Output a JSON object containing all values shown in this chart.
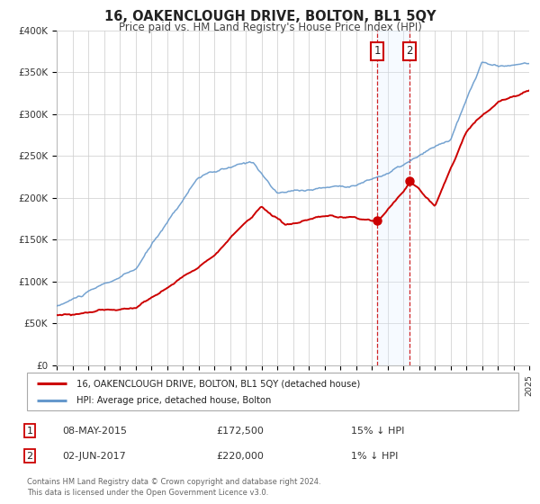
{
  "title": "16, OAKENCLOUGH DRIVE, BOLTON, BL1 5QY",
  "subtitle": "Price paid vs. HM Land Registry's House Price Index (HPI)",
  "ylim": [
    0,
    400000
  ],
  "xlim": [
    1995,
    2025
  ],
  "yticks": [
    0,
    50000,
    100000,
    150000,
    200000,
    250000,
    300000,
    350000,
    400000
  ],
  "ytick_labels": [
    "£0",
    "£50K",
    "£100K",
    "£150K",
    "£200K",
    "£250K",
    "£300K",
    "£350K",
    "£400K"
  ],
  "transaction1": {
    "date": "08-MAY-2015",
    "year": 2015.35,
    "price": 172500
  },
  "transaction2": {
    "date": "02-JUN-2017",
    "year": 2017.42,
    "price": 220000
  },
  "legend_line1": "16, OAKENCLOUGH DRIVE, BOLTON, BL1 5QY (detached house)",
  "legend_line2": "HPI: Average price, detached house, Bolton",
  "table_row1_num": "1",
  "table_row1_date": "08-MAY-2015",
  "table_row1_price": "£172,500",
  "table_row1_hpi": "15% ↓ HPI",
  "table_row2_num": "2",
  "table_row2_date": "02-JUN-2017",
  "table_row2_price": "£220,000",
  "table_row2_hpi": "1% ↓ HPI",
  "footer": "Contains HM Land Registry data © Crown copyright and database right 2024.\nThis data is licensed under the Open Government Licence v3.0.",
  "red_color": "#cc0000",
  "blue_color": "#6699cc",
  "highlight_color": "#ddeeff",
  "background_color": "#ffffff",
  "grid_color": "#cccccc"
}
